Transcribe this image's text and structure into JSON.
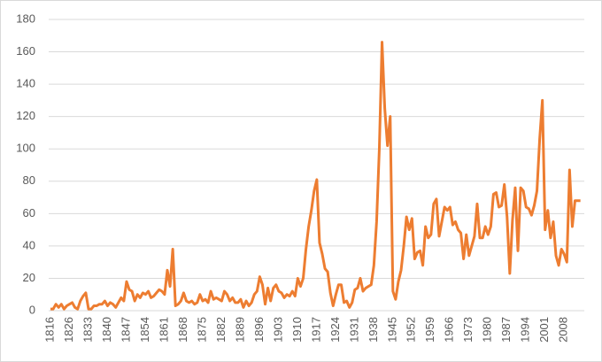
{
  "chart_data": {
    "type": "line",
    "categories": [
      "1816",
      null,
      null,
      null,
      null,
      null,
      null,
      "1826",
      null,
      null,
      null,
      null,
      null,
      null,
      "1833",
      null,
      null,
      null,
      null,
      null,
      null,
      "1840",
      null,
      null,
      null,
      null,
      null,
      null,
      "1847",
      null,
      null,
      null,
      null,
      null,
      null,
      "1854",
      null,
      null,
      null,
      null,
      null,
      null,
      "1861",
      null,
      null,
      null,
      null,
      null,
      null,
      "1868",
      null,
      null,
      null,
      null,
      null,
      null,
      "1875",
      null,
      null,
      null,
      null,
      null,
      null,
      "1882",
      null,
      null,
      null,
      null,
      null,
      null,
      "1889",
      null,
      null,
      null,
      null,
      null,
      null,
      "1896",
      null,
      null,
      null,
      null,
      null,
      null,
      "1903",
      null,
      null,
      null,
      null,
      null,
      null,
      "1910",
      null,
      null,
      null,
      null,
      null,
      null,
      "1917",
      null,
      null,
      null,
      null,
      null,
      null,
      "1924",
      null,
      null,
      null,
      null,
      null,
      null,
      "1931",
      null,
      null,
      null,
      null,
      null,
      null,
      "1938",
      null,
      null,
      null,
      null,
      null,
      null,
      "1945",
      null,
      null,
      null,
      null,
      null,
      null,
      "1952",
      null,
      null,
      null,
      null,
      null,
      null,
      "1959",
      null,
      null,
      null,
      null,
      null,
      null,
      "1966",
      null,
      null,
      null,
      null,
      null,
      null,
      "1973",
      null,
      null,
      null,
      null,
      null,
      null,
      "1980",
      null,
      null,
      null,
      null,
      null,
      null,
      "1987",
      null,
      null,
      null,
      null,
      null,
      null,
      "1994",
      null,
      null,
      null,
      null,
      null,
      null,
      "2001",
      null,
      null,
      null,
      null,
      null,
      null,
      "2008",
      null,
      null,
      null,
      null,
      null,
      null
    ],
    "values": [
      1,
      1,
      4,
      2,
      4,
      1,
      3,
      4,
      5,
      2,
      1,
      6,
      9,
      11,
      1,
      1,
      3,
      3,
      4,
      4,
      6,
      3,
      5,
      4,
      2,
      5,
      8,
      6,
      18,
      13,
      12,
      6,
      10,
      8,
      11,
      10,
      12,
      8,
      9,
      11,
      13,
      12,
      10,
      25,
      15,
      38,
      3,
      4,
      6,
      11,
      6,
      5,
      6,
      4,
      5,
      10,
      6,
      7,
      5,
      12,
      7,
      8,
      7,
      6,
      12,
      10,
      6,
      8,
      5,
      5,
      7,
      2,
      6,
      3,
      5,
      10,
      12,
      21,
      16,
      4,
      14,
      6,
      14,
      16,
      12,
      11,
      8,
      10,
      9,
      12,
      9,
      20,
      15,
      20,
      38,
      52,
      62,
      74,
      81,
      42,
      35,
      26,
      24,
      11,
      3,
      10,
      16,
      16,
      5,
      6,
      2,
      5,
      13,
      14,
      20,
      12,
      14,
      15,
      16,
      28,
      55,
      100,
      166,
      125,
      102,
      120,
      12,
      7,
      18,
      25,
      40,
      58,
      50,
      57,
      32,
      36,
      37,
      28,
      52,
      45,
      47,
      66,
      69,
      46,
      55,
      64,
      62,
      64,
      53,
      55,
      50,
      48,
      32,
      47,
      34,
      40,
      46,
      66,
      45,
      45,
      52,
      47,
      52,
      72,
      73,
      64,
      65,
      78,
      58,
      23,
      56,
      76,
      37,
      76,
      74,
      64,
      63,
      59,
      65,
      74,
      106,
      130,
      50,
      62,
      45,
      55,
      34,
      28,
      38,
      35,
      30,
      87,
      52,
      68,
      68,
      68
    ],
    "color": "#ed7d31",
    "ylim": [
      0,
      180
    ],
    "yticks": [
      0,
      20,
      40,
      60,
      80,
      100,
      120,
      140,
      160,
      180
    ],
    "grid": true
  }
}
